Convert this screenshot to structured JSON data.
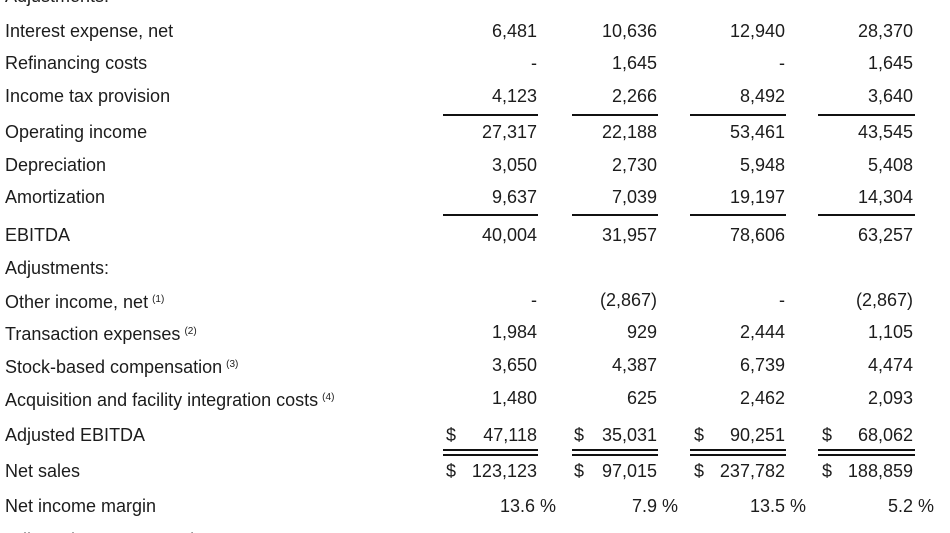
{
  "table": {
    "rows": [
      {
        "label": "Adjustments:"
      },
      {
        "label": "Interest expense, net",
        "values": [
          "6,481",
          "10,636",
          "12,940",
          "28,370"
        ]
      },
      {
        "label": "Refinancing costs",
        "values": [
          "-",
          "1,645",
          "-",
          "1,645"
        ]
      },
      {
        "label": "Income tax provision",
        "values": [
          "4,123",
          "2,266",
          "8,492",
          "3,640"
        ]
      },
      {
        "label": "Operating income",
        "values": [
          "27,317",
          "22,188",
          "53,461",
          "43,545"
        ]
      },
      {
        "label": "Depreciation",
        "values": [
          "3,050",
          "2,730",
          "5,948",
          "5,408"
        ]
      },
      {
        "label": "Amortization",
        "values": [
          "9,637",
          "7,039",
          "19,197",
          "14,304"
        ]
      },
      {
        "label": "EBITDA",
        "values": [
          "40,004",
          "31,957",
          "78,606",
          "63,257"
        ]
      },
      {
        "label": "Adjustments:"
      },
      {
        "label": "Other income, net",
        "note": "(1)",
        "values": [
          "-",
          "(2,867)",
          "-",
          "(2,867)"
        ]
      },
      {
        "label": "Transaction expenses",
        "note": "(2)",
        "values": [
          "1,984",
          "929",
          "2,444",
          "1,105"
        ]
      },
      {
        "label": "Stock-based compensation",
        "note": "(3)",
        "values": [
          "3,650",
          "4,387",
          "6,739",
          "4,474"
        ]
      },
      {
        "label": "Acquisition and facility integration costs",
        "note": "(4)",
        "values": [
          "1,480",
          "625",
          "2,462",
          "2,093"
        ]
      },
      {
        "label": "Adjusted EBITDA",
        "currency": "$",
        "values": [
          "47,118",
          "35,031",
          "90,251",
          "68,062"
        ]
      },
      {
        "label": "Net sales",
        "currency": "$",
        "values": [
          "123,123",
          "97,015",
          "237,782",
          "188,859"
        ]
      },
      {
        "label": "Net income margin",
        "percent": true,
        "values": [
          "13.6 %",
          "7.9 %",
          "13.5 %",
          "5.2 %"
        ]
      },
      {
        "label": "Adjusted EBITDA Margin"
      }
    ]
  }
}
